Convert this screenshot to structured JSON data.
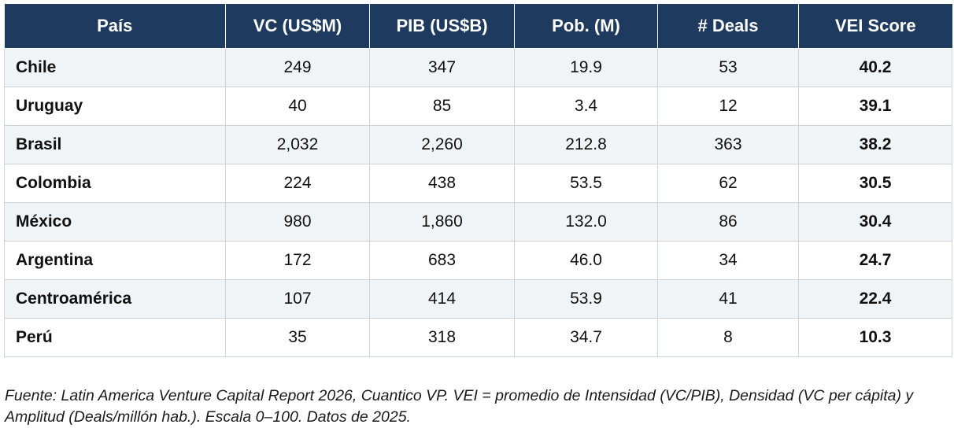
{
  "table": {
    "columns": [
      "País",
      "VC (US$M)",
      "PIB (US$B)",
      "Pob. (M)",
      "# Deals",
      "VEI Score"
    ],
    "rows": [
      {
        "pais": "Chile",
        "vc": "249",
        "pib": "347",
        "pob": "19.9",
        "deals": "53",
        "vei": "40.2"
      },
      {
        "pais": "Uruguay",
        "vc": "40",
        "pib": "85",
        "pob": "3.4",
        "deals": "12",
        "vei": "39.1"
      },
      {
        "pais": "Brasil",
        "vc": "2,032",
        "pib": "2,260",
        "pob": "212.8",
        "deals": "363",
        "vei": "38.2"
      },
      {
        "pais": "Colombia",
        "vc": "224",
        "pib": "438",
        "pob": "53.5",
        "deals": "62",
        "vei": "30.5"
      },
      {
        "pais": "México",
        "vc": "980",
        "pib": "1,860",
        "pob": "132.0",
        "deals": "86",
        "vei": "30.4"
      },
      {
        "pais": "Argentina",
        "vc": "172",
        "pib": "683",
        "pob": "46.0",
        "deals": "34",
        "vei": "24.7"
      },
      {
        "pais": "Centroamérica",
        "vc": "107",
        "pib": "414",
        "pob": "53.9",
        "deals": "41",
        "vei": "22.4"
      },
      {
        "pais": "Perú",
        "vc": "35",
        "pib": "318",
        "pob": "34.7",
        "deals": "8",
        "vei": "10.3"
      }
    ]
  },
  "footnote": "Fuente: Latin America Venture Capital Report 2026, Cuantico VP. VEI = promedio de Intensidad (VC/PIB), Densidad (VC per cápita) y Amplitud (Deals/millón hab.). Escala 0–100. Datos de 2025.",
  "colors": {
    "header_bg": "#1e3a5f",
    "header_text": "#ffffff",
    "row_alt": "#f1f4f7",
    "border": "#cfd4d9"
  }
}
